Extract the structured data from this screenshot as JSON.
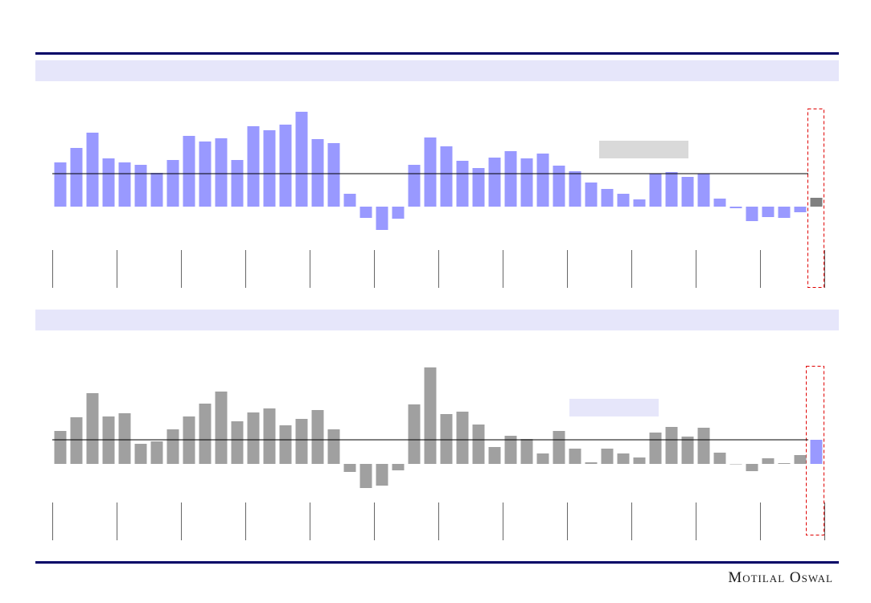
{
  "chart_data": [
    {
      "type": "bar",
      "color": "#9999ff",
      "last_color": "#808080",
      "average": 4.1,
      "ylim": [
        -10,
        13
      ],
      "values": [
        5.5,
        7.3,
        9.2,
        6.0,
        5.5,
        5.2,
        4.2,
        5.8,
        8.8,
        8.1,
        8.5,
        5.8,
        10.0,
        9.5,
        10.2,
        11.8,
        8.4,
        7.9,
        1.6,
        -1.4,
        -2.9,
        -1.5,
        5.2,
        8.6,
        7.5,
        5.7,
        4.8,
        6.1,
        6.9,
        6.0,
        6.6,
        5.1,
        4.4,
        3.0,
        2.2,
        1.6,
        0.9,
        4.1,
        4.3,
        3.7,
        4.1,
        1.0,
        -0.2,
        -1.8,
        -1.3,
        -1.4,
        -0.7,
        1.1
      ]
    },
    {
      "type": "bar",
      "color": "#a0a0a0",
      "last_color": "#9999ff",
      "average": 3.0,
      "ylim": [
        -9,
        15
      ],
      "values": [
        4.1,
        5.8,
        8.8,
        5.9,
        6.3,
        2.5,
        2.8,
        4.3,
        5.9,
        7.5,
        9.0,
        5.3,
        6.4,
        6.9,
        4.8,
        5.6,
        6.7,
        4.3,
        -1.0,
        -3.0,
        -2.7,
        -0.8,
        7.4,
        12.0,
        6.2,
        6.5,
        4.9,
        2.1,
        3.5,
        3.1,
        1.3,
        4.1,
        1.9,
        0.2,
        1.9,
        1.3,
        0.8,
        3.9,
        4.6,
        3.4,
        4.5,
        1.4,
        0.0,
        -0.9,
        0.7,
        0.1,
        1.1,
        3.0
      ]
    }
  ],
  "footer": {
    "brand": "Motilal Oswal"
  }
}
